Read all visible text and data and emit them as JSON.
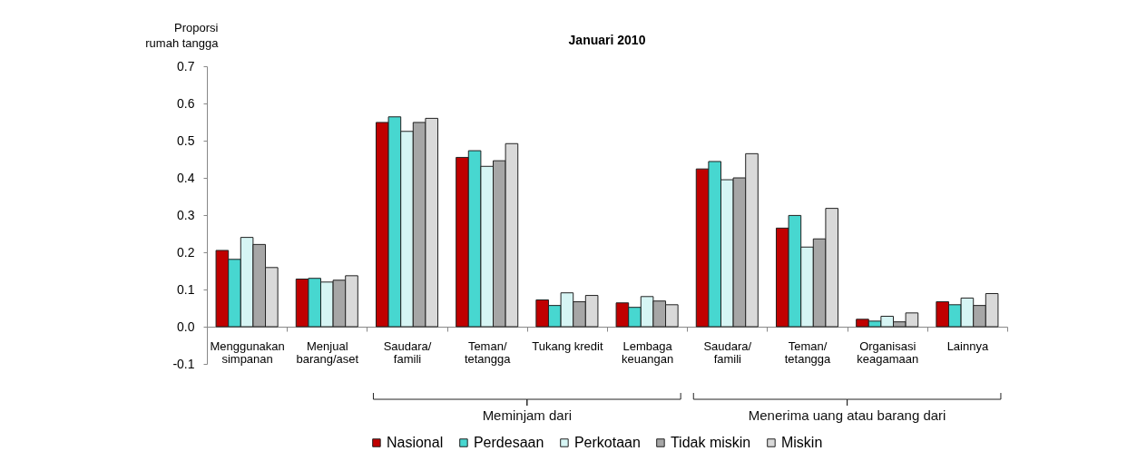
{
  "chart_data": {
    "type": "bar",
    "title": "Januari 2010",
    "ylabel": "Proporsi\nrumah tangga",
    "categories": [
      "Menggunakan\nsimpanan",
      "Menjual\nbarang/aset",
      "Saudara/\nfamili",
      "Teman/\ntetangga",
      "Tukang kredit",
      "Lembaga\nkeuangan",
      "Saudara/\nfamili",
      "Teman/\ntetangga",
      "Organisasi\nkeagamaan",
      "Lainnya"
    ],
    "series": [
      {
        "name": "Nasional",
        "color": "#c00000",
        "values": [
          0.205,
          0.128,
          0.549,
          0.455,
          0.072,
          0.064,
          0.424,
          0.265,
          0.02,
          0.067
        ]
      },
      {
        "name": "Perdesaan",
        "color": "#47d7d0",
        "values": [
          0.181,
          0.13,
          0.564,
          0.473,
          0.057,
          0.052,
          0.444,
          0.299,
          0.015,
          0.059
        ]
      },
      {
        "name": "Perkotaan",
        "color": "#d6f5f4",
        "values": [
          0.24,
          0.12,
          0.525,
          0.431,
          0.091,
          0.081,
          0.395,
          0.214,
          0.028,
          0.077
        ]
      },
      {
        "name": "Tidak miskin",
        "color": "#a6a6a6",
        "values": [
          0.221,
          0.125,
          0.549,
          0.446,
          0.067,
          0.069,
          0.4,
          0.236,
          0.013,
          0.057
        ]
      },
      {
        "name": "Miskin",
        "color": "#d9d9d9",
        "values": [
          0.159,
          0.137,
          0.56,
          0.492,
          0.084,
          0.059,
          0.465,
          0.318,
          0.037,
          0.089
        ]
      }
    ],
    "ylim": [
      -0.1,
      0.7
    ],
    "yticks": [
      -0.1,
      {
        "value": 0,
        "label": "0.0"
      },
      0.1,
      0.2,
      0.3,
      0.4,
      0.5,
      0.6,
      0.7
    ],
    "legend": "bottom",
    "annotations": [
      "Meminjam dari",
      "Menerima uang atau barang dari"
    ]
  }
}
